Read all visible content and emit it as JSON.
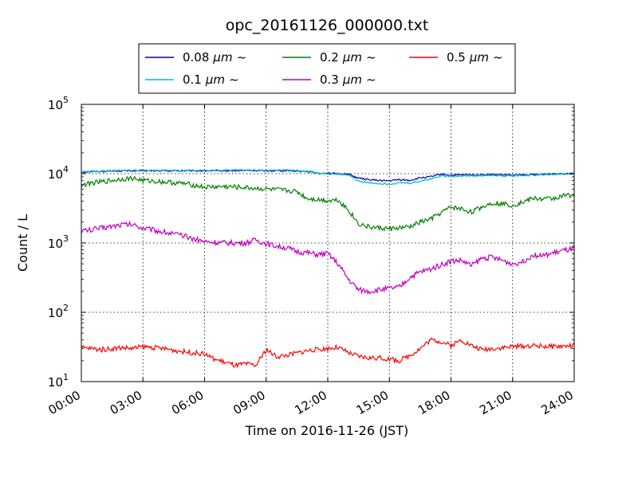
{
  "chart_data": {
    "type": "line",
    "title": "opc_20161126_000000.txt",
    "xlabel": "Time on 2016-11-26 (JST)",
    "ylabel": "Count / L",
    "y_scale": "log",
    "xlim": [
      "00:00",
      "24:00"
    ],
    "ylim": [
      10,
      100000
    ],
    "x_tick_labels": [
      "00:00",
      "03:00",
      "06:00",
      "09:00",
      "12:00",
      "15:00",
      "18:00",
      "21:00",
      "24:00"
    ],
    "y_tick_labels": [
      {
        "base": "10",
        "exp": "1"
      },
      {
        "base": "10",
        "exp": "2"
      },
      {
        "base": "10",
        "exp": "3"
      },
      {
        "base": "10",
        "exp": "4"
      },
      {
        "base": "10",
        "exp": "5"
      }
    ],
    "grid": true,
    "legend_position": "top-center",
    "legend_suffix": "~",
    "series": [
      {
        "name": "0.08",
        "unit": "μm",
        "color": "#0000bf",
        "x": [
          "00:00",
          "01:00",
          "02:00",
          "03:00",
          "04:00",
          "05:00",
          "06:00",
          "07:00",
          "08:00",
          "09:00",
          "10:00",
          "11:00",
          "11:30",
          "12:00",
          "12:30",
          "13:00",
          "13:30",
          "14:00",
          "14:30",
          "15:00",
          "15:30",
          "16:00",
          "16:30",
          "17:00",
          "17:30",
          "18:00",
          "18:30",
          "19:00",
          "20:00",
          "21:00",
          "22:00",
          "23:00",
          "24:00"
        ],
        "y": [
          10600,
          10800,
          11000,
          11000,
          11000,
          11000,
          11000,
          11000,
          11100,
          11000,
          11100,
          10800,
          10200,
          10100,
          10000,
          9900,
          8600,
          8200,
          8000,
          7900,
          8200,
          8000,
          8700,
          9000,
          9800,
          9500,
          9600,
          9600,
          9700,
          9500,
          9700,
          10000,
          10200
        ]
      },
      {
        "name": "0.1",
        "unit": "μm",
        "color": "#00bfbf",
        "x": [
          "00:00",
          "01:00",
          "02:00",
          "03:00",
          "04:00",
          "05:00",
          "06:00",
          "07:00",
          "08:00",
          "09:00",
          "10:00",
          "11:00",
          "11:30",
          "12:00",
          "12:30",
          "13:00",
          "13:30",
          "14:00",
          "14:30",
          "15:00",
          "15:30",
          "16:00",
          "16:30",
          "17:00",
          "17:30",
          "18:00",
          "18:30",
          "19:00",
          "20:00",
          "21:00",
          "22:00",
          "23:00",
          "24:00"
        ],
        "y": [
          10700,
          10900,
          11100,
          11100,
          11100,
          11100,
          11100,
          11200,
          11300,
          11200,
          11200,
          10900,
          10200,
          10000,
          9800,
          9600,
          7800,
          7400,
          7200,
          7100,
          7400,
          7300,
          7800,
          8400,
          9300,
          9200,
          9300,
          9300,
          9400,
          9300,
          9500,
          9800,
          10000
        ]
      },
      {
        "name": "0.2",
        "unit": "μm",
        "color": "#008000",
        "x": [
          "00:00",
          "00:30",
          "01:00",
          "01:30",
          "02:00",
          "02:30",
          "03:00",
          "04:00",
          "05:00",
          "06:00",
          "07:00",
          "08:00",
          "09:00",
          "10:00",
          "10:30",
          "11:00",
          "12:00",
          "12:30",
          "13:00",
          "13:30",
          "14:00",
          "14:30",
          "15:00",
          "15:30",
          "16:00",
          "16:30",
          "17:00",
          "17:30",
          "18:00",
          "18:30",
          "19:00",
          "19:30",
          "20:00",
          "20:30",
          "21:00",
          "21:30",
          "22:00",
          "22:30",
          "23:00",
          "23:30",
          "24:00"
        ],
        "y": [
          6800,
          7300,
          7600,
          8000,
          8400,
          8600,
          8000,
          7600,
          7200,
          6400,
          6500,
          6300,
          6000,
          5700,
          5500,
          4400,
          4100,
          4200,
          3000,
          1900,
          1700,
          1650,
          1600,
          1650,
          1700,
          2000,
          2200,
          2700,
          3300,
          3100,
          2800,
          3300,
          3800,
          3700,
          3500,
          3900,
          4400,
          4300,
          4400,
          4800,
          5000
        ]
      },
      {
        "name": "0.3",
        "unit": "μm",
        "color": "#bf00bf",
        "x": [
          "00:00",
          "00:30",
          "01:00",
          "01:30",
          "02:00",
          "02:30",
          "03:00",
          "04:00",
          "05:00",
          "06:00",
          "07:00",
          "08:00",
          "08:30",
          "09:00",
          "09:30",
          "10:00",
          "10:30",
          "11:00",
          "11:30",
          "12:00",
          "12:30",
          "13:00",
          "13:30",
          "14:00",
          "14:30",
          "15:00",
          "15:30",
          "16:00",
          "16:30",
          "17:00",
          "17:30",
          "18:00",
          "18:30",
          "19:00",
          "19:30",
          "20:00",
          "20:30",
          "21:00",
          "21:30",
          "22:00",
          "22:30",
          "23:00",
          "23:30",
          "24:00"
        ],
        "y": [
          1500,
          1550,
          1650,
          1750,
          1850,
          1850,
          1650,
          1450,
          1250,
          1050,
          1000,
          1000,
          1100,
          980,
          900,
          850,
          750,
          720,
          680,
          700,
          500,
          300,
          210,
          200,
          210,
          220,
          230,
          320,
          380,
          420,
          480,
          550,
          560,
          470,
          600,
          620,
          560,
          500,
          540,
          680,
          650,
          720,
          780,
          820
        ]
      },
      {
        "name": "0.5",
        "unit": "μm",
        "color": "#ff0000",
        "x": [
          "00:00",
          "00:30",
          "01:00",
          "01:30",
          "02:00",
          "02:30",
          "03:00",
          "04:00",
          "05:00",
          "06:00",
          "06:30",
          "07:00",
          "07:30",
          "08:00",
          "08:30",
          "09:00",
          "09:30",
          "10:00",
          "11:00",
          "12:00",
          "12:30",
          "13:00",
          "13:30",
          "14:00",
          "14:30",
          "15:00",
          "15:30",
          "16:00",
          "16:30",
          "17:00",
          "17:30",
          "18:00",
          "18:30",
          "19:00",
          "19:30",
          "20:00",
          "20:30",
          "21:00",
          "22:00",
          "23:00",
          "24:00"
        ],
        "y": [
          31,
          30,
          29,
          30,
          31,
          30,
          32,
          30,
          27,
          25,
          21,
          19,
          17,
          18,
          17,
          29,
          23,
          24,
          28,
          30,
          31,
          26,
          23,
          22,
          22,
          21,
          20,
          24,
          30,
          40,
          38,
          33,
          40,
          33,
          29,
          30,
          31,
          32,
          33,
          32,
          33
        ]
      }
    ]
  }
}
